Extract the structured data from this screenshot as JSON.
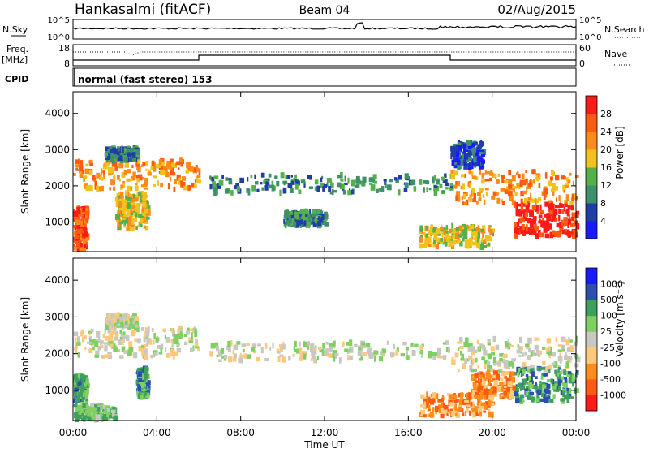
{
  "header": {
    "station": "Hankasalmi (fitACF)",
    "beam": "Beam 04",
    "date": "02/Aug/2015"
  },
  "noise_panel": {
    "left_label": "N.Sky",
    "right_label": "N.Search",
    "left_ticks": [
      "10^5",
      "10^0"
    ],
    "right_ticks": [
      "10^5",
      "10^0"
    ]
  },
  "freq_panel": {
    "left_label_line1": "Freq.",
    "left_label_line2": "[MHz]",
    "right_label": "Nave",
    "left_ticks": [
      "18",
      "8"
    ],
    "right_ticks": [
      "60",
      "0"
    ]
  },
  "cpid_panel": {
    "label": "CPID",
    "text": "normal (fast stereo) 153"
  },
  "colors": {
    "power_scale": [
      "#1a1aff",
      "#1f3fa6",
      "#3f8f6a",
      "#55b04a",
      "#f0c21a",
      "#ff8a1a",
      "#ff5a10",
      "#ff1a1a"
    ],
    "velocity_scale": [
      "#ff1a1a",
      "#ff5a10",
      "#ff8c1a",
      "#ffc87a",
      "#c8c8c0",
      "#7fd060",
      "#3f9f5f",
      "#2a4fb0",
      "#1a1aff"
    ]
  },
  "chart_data": [
    {
      "type": "heatmap",
      "name": "power",
      "ylabel": "Slant Range [km]",
      "ylim": [
        180,
        4600
      ],
      "yticks": [
        "1000",
        "2000",
        "3000",
        "4000"
      ],
      "colorbar_label": "Power [dB]",
      "colorbar_ticks": [
        "4",
        "8",
        "12",
        "16",
        "20",
        "24",
        "28"
      ],
      "regions": [
        {
          "t": [
            0.0,
            6.0
          ],
          "r": [
            1900,
            2700
          ],
          "level": 5
        },
        {
          "t": [
            1.5,
            3.0
          ],
          "r": [
            2700,
            3050
          ],
          "level": 2
        },
        {
          "t": [
            0.0,
            0.6
          ],
          "r": [
            200,
            1400
          ],
          "level": 6
        },
        {
          "t": [
            2.0,
            3.5
          ],
          "r": [
            800,
            1800
          ],
          "level": 4
        },
        {
          "t": [
            6.5,
            18.0
          ],
          "r": [
            1800,
            2300
          ],
          "level": 2
        },
        {
          "t": [
            10.0,
            12.0
          ],
          "r": [
            900,
            1300
          ],
          "level": 2
        },
        {
          "t": [
            16.5,
            20.0
          ],
          "r": [
            300,
            900
          ],
          "level": 4
        },
        {
          "t": [
            18.0,
            24.0
          ],
          "r": [
            1500,
            2400
          ],
          "level": 5
        },
        {
          "t": [
            21.0,
            24.0
          ],
          "r": [
            600,
            1500
          ],
          "level": 7
        },
        {
          "t": [
            18.0,
            19.5
          ],
          "r": [
            2500,
            3200
          ],
          "level": 1
        }
      ]
    },
    {
      "type": "heatmap",
      "name": "velocity",
      "ylabel": "Slant Range [km]",
      "xlabel": "Time UT",
      "ylim": [
        180,
        4600
      ],
      "yticks": [
        "1000",
        "2000",
        "3000",
        "4000"
      ],
      "xticks": [
        "00:00",
        "04:00",
        "08:00",
        "12:00",
        "16:00",
        "20:00",
        "00:00"
      ],
      "colorbar_label": "Velocity [m s⁻¹]",
      "colorbar_ticks": [
        "1000",
        "500",
        "100",
        "25",
        "-25",
        "-100",
        "-500",
        "-1000"
      ],
      "regions": [
        {
          "t": [
            0.0,
            6.0
          ],
          "r": [
            1900,
            2700
          ],
          "level": 4
        },
        {
          "t": [
            1.5,
            3.0
          ],
          "r": [
            2700,
            3050
          ],
          "level": 4
        },
        {
          "t": [
            0.0,
            0.6
          ],
          "r": [
            700,
            1400
          ],
          "level": 6
        },
        {
          "t": [
            0.0,
            2.0
          ],
          "r": [
            200,
            600
          ],
          "level": 5
        },
        {
          "t": [
            3.0,
            3.5
          ],
          "r": [
            800,
            1600
          ],
          "level": 6
        },
        {
          "t": [
            6.5,
            18.0
          ],
          "r": [
            1800,
            2300
          ],
          "level": 4
        },
        {
          "t": [
            16.5,
            20.0
          ],
          "r": [
            300,
            900
          ],
          "level": 2
        },
        {
          "t": [
            18.0,
            24.0
          ],
          "r": [
            1500,
            2400
          ],
          "level": 4
        },
        {
          "t": [
            21.0,
            24.0
          ],
          "r": [
            700,
            1600
          ],
          "level": 6
        },
        {
          "t": [
            19.0,
            21.0
          ],
          "r": [
            800,
            1500
          ],
          "level": 2
        }
      ]
    }
  ]
}
